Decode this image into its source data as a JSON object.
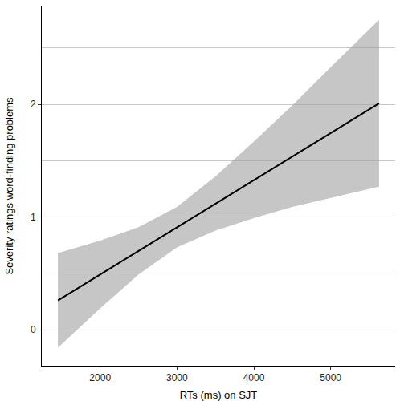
{
  "chart_data": {
    "type": "line",
    "x_label": "RTs (ms) on SJT",
    "y_label": "Severity ratings word-finding problems",
    "x": [
      1450,
      2000,
      2500,
      3000,
      3500,
      4000,
      4500,
      5000,
      5630
    ],
    "values": [
      0.26,
      0.49,
      0.7,
      0.91,
      1.12,
      1.33,
      1.54,
      1.75,
      2.01
    ],
    "lower": [
      -0.16,
      0.19,
      0.49,
      0.73,
      0.88,
      0.99,
      1.09,
      1.17,
      1.27
    ],
    "upper": [
      0.68,
      0.79,
      0.91,
      1.09,
      1.36,
      1.67,
      1.99,
      2.33,
      2.75
    ],
    "color": "#000000",
    "xlim": [
      1240,
      5840
    ],
    "xticks": [
      2000,
      3000,
      4000,
      5000
    ],
    "ylim": [
      -0.32,
      2.87
    ],
    "yticks": [
      0,
      1,
      2
    ],
    "grid": true
  }
}
